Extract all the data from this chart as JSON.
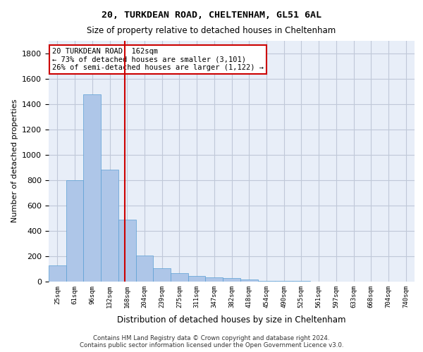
{
  "title1": "20, TURKDEAN ROAD, CHELTENHAM, GL51 6AL",
  "title2": "Size of property relative to detached houses in Cheltenham",
  "xlabel": "Distribution of detached houses by size in Cheltenham",
  "ylabel": "Number of detached properties",
  "footnote": "Contains HM Land Registry data © Crown copyright and database right 2024.\nContains public sector information licensed under the Open Government Licence v3.0.",
  "bin_labels": [
    "25sqm",
    "61sqm",
    "96sqm",
    "132sqm",
    "168sqm",
    "204sqm",
    "239sqm",
    "275sqm",
    "311sqm",
    "347sqm",
    "382sqm",
    "418sqm",
    "454sqm",
    "490sqm",
    "525sqm",
    "561sqm",
    "597sqm",
    "633sqm",
    "668sqm",
    "704sqm",
    "740sqm"
  ],
  "bar_values": [
    125,
    800,
    1475,
    880,
    490,
    205,
    105,
    65,
    45,
    35,
    25,
    15,
    8,
    5,
    3,
    2,
    1,
    1,
    1,
    1,
    0
  ],
  "bar_color": "#aec6e8",
  "bar_edge_color": "#5a9fd4",
  "vline_color": "#cc0000",
  "annotation_text": "20 TURKDEAN ROAD: 162sqm\n← 73% of detached houses are smaller (3,101)\n26% of semi-detached houses are larger (1,122) →",
  "annotation_box_color": "#cc0000",
  "ylim": [
    0,
    1900
  ],
  "yticks": [
    0,
    200,
    400,
    600,
    800,
    1000,
    1200,
    1400,
    1600,
    1800
  ],
  "grid_color": "#c0c8d8",
  "bg_color": "#e8eef8"
}
